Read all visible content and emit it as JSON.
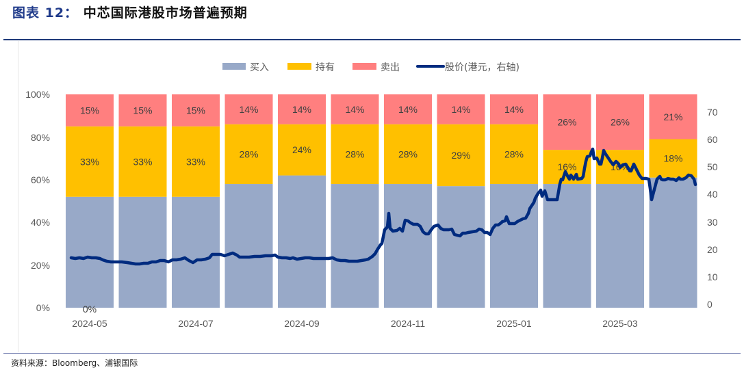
{
  "title": {
    "prefix": "图表 12：",
    "text": "中芯国际港股市场普遍预期"
  },
  "source": "资料来源：Bloomberg、浦银国际",
  "colors": {
    "buy": "#98a9c8",
    "hold": "#ffc000",
    "sell": "#ff7f7f",
    "price": "#002b7f",
    "accent": "#1f3a8a"
  },
  "chart_data": {
    "type": "bar",
    "stacked": true,
    "title": "中芯国际港股市场普遍预期",
    "legend": [
      "买入",
      "持有",
      "卖出",
      "股价(港元，右轴)"
    ],
    "legend_position": "top",
    "categories": [
      "2024-05",
      "2024-06",
      "2024-07",
      "2024-08",
      "2024-09",
      "2024-10",
      "2024-11",
      "2024-12",
      "2025-01",
      "2025-02",
      "2025-03",
      "2025-04"
    ],
    "x_tick_labels": [
      "2024-05",
      "2024-07",
      "2024-09",
      "2024-11",
      "2025-01",
      "2025-03"
    ],
    "series": [
      {
        "name": "买入",
        "axis": "left",
        "values": [
          52,
          52,
          52,
          58,
          62,
          58,
          58,
          57,
          58,
          58,
          58,
          61
        ]
      },
      {
        "name": "持有",
        "axis": "left",
        "values": [
          33,
          33,
          33,
          28,
          24,
          28,
          28,
          29,
          28,
          16,
          16,
          18
        ]
      },
      {
        "name": "卖出",
        "axis": "left",
        "values": [
          15,
          15,
          15,
          14,
          14,
          14,
          14,
          14,
          14,
          26,
          26,
          21
        ]
      }
    ],
    "data_labels": {
      "hold": [
        "33%",
        "33%",
        "33%",
        "28%",
        "24%",
        "28%",
        "28%",
        "29%",
        "28%",
        "16%",
        "16%",
        "18%"
      ],
      "sell": [
        "15%",
        "15%",
        "15%",
        "14%",
        "14%",
        "14%",
        "14%",
        "14%",
        "14%",
        "26%",
        "26%",
        "21%"
      ],
      "extra": "0%"
    },
    "line_series": {
      "name": "股价(港元，右轴)",
      "axis": "right",
      "x": [
        "2024-05-02",
        "2024-05-15",
        "2024-06-01",
        "2024-06-15",
        "2024-07-01",
        "2024-07-15",
        "2024-08-01",
        "2024-08-15",
        "2024-09-01",
        "2024-09-15",
        "2024-10-01",
        "2024-10-08",
        "2024-10-15",
        "2024-11-01",
        "2024-11-15",
        "2024-12-01",
        "2024-12-15",
        "2025-01-01",
        "2025-01-15",
        "2025-02-01",
        "2025-02-10",
        "2025-02-20",
        "2025-03-01",
        "2025-03-10",
        "2025-03-20",
        "2025-04-01",
        "2025-04-07",
        "2025-04-15",
        "2025-04-25"
      ],
      "values": [
        17,
        16.5,
        15.5,
        15,
        16,
        16.5,
        19,
        18.5,
        18,
        17.5,
        17,
        16,
        21,
        32,
        29,
        27,
        26.5,
        26.5,
        31,
        40,
        39,
        47,
        56,
        54,
        50,
        46,
        39,
        46,
        44
      ]
    },
    "ylim_left": [
      0,
      100
    ],
    "yticks_left": [
      "0%",
      "20%",
      "40%",
      "60%",
      "80%",
      "100%"
    ],
    "ylim_right": [
      0,
      70
    ],
    "yticks_right": [
      "0",
      "10",
      "20",
      "30",
      "40",
      "50",
      "60",
      "70"
    ],
    "grid": false
  }
}
